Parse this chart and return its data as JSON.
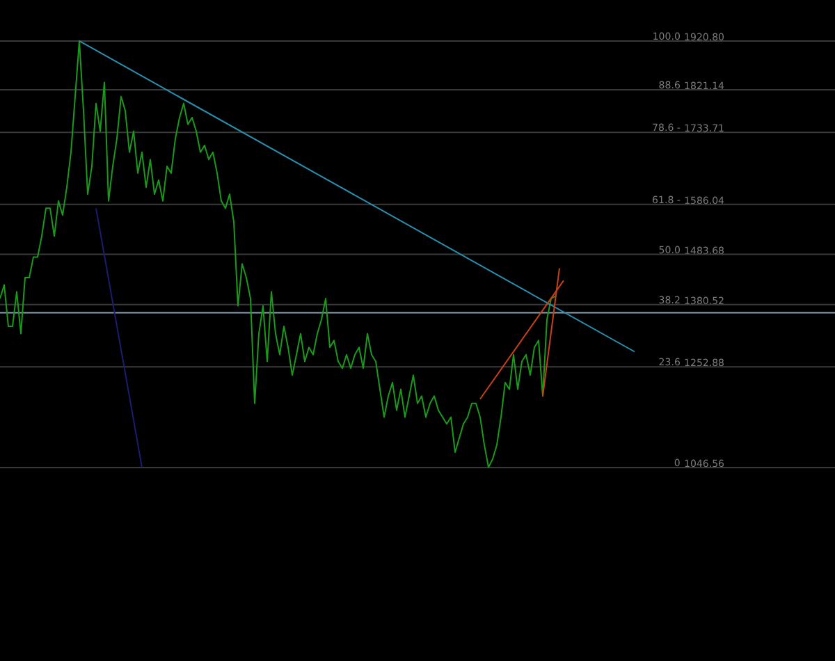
{
  "chart_data": {
    "type": "line",
    "ylim": [
      650,
      2005
    ],
    "tick_labels": "y",
    "grid": "y",
    "categories": [
      null,
      null,
      null,
      null,
      null,
      null,
      null,
      null,
      null,
      null,
      null,
      null,
      null,
      null,
      null,
      null,
      null,
      null,
      null,
      null,
      null,
      null,
      null,
      null,
      null,
      null,
      null,
      null,
      null,
      null,
      null,
      null,
      null,
      null,
      null,
      null,
      null,
      null,
      null,
      null,
      null,
      null,
      null,
      null,
      null,
      null,
      null,
      null,
      null,
      null,
      null,
      null,
      null,
      null,
      null,
      null,
      null,
      null,
      null,
      null,
      null,
      null,
      null,
      null,
      null,
      null,
      null,
      null,
      null,
      null,
      null,
      null,
      null,
      null,
      null,
      null,
      null,
      null,
      null,
      null,
      null,
      null,
      null,
      null,
      null,
      null,
      null,
      null,
      null,
      null,
      null,
      null,
      null,
      null,
      null,
      null,
      null,
      null,
      null,
      null,
      null,
      null,
      null,
      null,
      null,
      null,
      null,
      null,
      null,
      null,
      null,
      null,
      null,
      null,
      null,
      null,
      null,
      null,
      null,
      null,
      null,
      null,
      null,
      null,
      null,
      null,
      null,
      null,
      null,
      null,
      null,
      null,
      null,
      null,
      null,
      null,
      null,
      null,
      null,
      null,
      null,
      null,
      null,
      null,
      null,
      null,
      null,
      null,
      null,
      null,
      null,
      null,
      null,
      null,
      null,
      null,
      null,
      null,
      null,
      null,
      null,
      null,
      null,
      null,
      null,
      null,
      null,
      null,
      null,
      null,
      null,
      null,
      null,
      null,
      null,
      null,
      null,
      null,
      null,
      null,
      null,
      null,
      null,
      null,
      null,
      null,
      null,
      null,
      null,
      null,
      null,
      null,
      null,
      null,
      null,
      null,
      null,
      null,
      null,
      null,
      null
    ],
    "yticks": [
      {
        "value": 1920.8,
        "label": "1920.80"
      },
      {
        "value": 1821.14,
        "label": "1821.14"
      },
      {
        "value": 1733.71,
        "label": "1733.71"
      },
      {
        "value": 1586.04,
        "label": "1586.04"
      },
      {
        "value": 1483.68,
        "label": "1483.68"
      },
      {
        "value": 1380.52,
        "label": "1380.52"
      },
      {
        "value": 1252.88,
        "label": "1252.88"
      },
      {
        "value": 1046.56,
        "label": "1046.56"
      }
    ],
    "annotations": [
      "100.0",
      "88.6",
      "78.6 -",
      "61.8 -",
      "50.0",
      "38.2",
      "23.6",
      "0"
    ],
    "series": [
      {
        "color": "#1a9a1a",
        "values": [
          1393,
          1421,
          1336,
          1336,
          1407,
          1321,
          1436,
          1436,
          1478,
          1478,
          1521,
          1578,
          1578,
          1521,
          1593,
          1564,
          1621,
          1693,
          1807,
          1921,
          1778,
          1607,
          1664,
          1793,
          1736,
          1836,
          1593,
          1664,
          1721,
          1807,
          1778,
          1693,
          1736,
          1650,
          1693,
          1621,
          1678,
          1607,
          1636,
          1593,
          1664,
          1650,
          1721,
          1764,
          1793,
          1750,
          1764,
          1736,
          1693,
          1707,
          1678,
          1693,
          1650,
          1593,
          1578,
          1607,
          1550,
          1378,
          1464,
          1436,
          1393,
          1178,
          1321,
          1378,
          1264,
          1407,
          1321,
          1278,
          1336,
          1293,
          1236,
          1278,
          1321,
          1264,
          1293,
          1278,
          1321,
          1350,
          1393,
          1293,
          1307,
          1264,
          1250,
          1278,
          1250,
          1278,
          1293,
          1250,
          1321,
          1278,
          1264,
          1207,
          1150,
          1193,
          1221,
          1164,
          1207,
          1150,
          1193,
          1236,
          1178,
          1193,
          1150,
          1178,
          1193,
          1164,
          1150,
          1136,
          1150,
          1078,
          1107,
          1136,
          1150,
          1178,
          1178,
          1150,
          1093,
          1047,
          1064,
          1093,
          1150,
          1221,
          1207,
          1278,
          1207,
          1264,
          1278,
          1236,
          1293,
          1307,
          1193,
          1350,
          1393,
          1398,
          null,
          null,
          null,
          null,
          null,
          null,
          null,
          null,
          null,
          null,
          null,
          null,
          null,
          null,
          null,
          null,
          null,
          null,
          null,
          null,
          null,
          null,
          null,
          null,
          null,
          null,
          null,
          null,
          null,
          null,
          null,
          null,
          null,
          null,
          null,
          null,
          null,
          null,
          null,
          null,
          null,
          null,
          null,
          null,
          null,
          null,
          null,
          null,
          null,
          null,
          null,
          null,
          null,
          null,
          null,
          null,
          null,
          null,
          null,
          null,
          null,
          null,
          null,
          null,
          null,
          null,
          null
        ]
      },
      {
        "color": "#2a8fb0",
        "values": [
          null,
          null,
          null,
          null,
          null,
          null,
          null,
          null,
          null,
          null,
          null,
          null,
          null,
          null,
          null,
          null,
          null,
          null,
          null,
          1921,
          null,
          null,
          null,
          null,
          null,
          null,
          null,
          null,
          null,
          null,
          null,
          null,
          null,
          null,
          null,
          null,
          null,
          null,
          null,
          null,
          null,
          null,
          null,
          null,
          null,
          null,
          null,
          null,
          null,
          null,
          null,
          null,
          null,
          null,
          null,
          null,
          null,
          null,
          null,
          null,
          null,
          null,
          null,
          null,
          null,
          null,
          null,
          null,
          null,
          null,
          null,
          null,
          null,
          null,
          null,
          null,
          null,
          null,
          null,
          null,
          null,
          null,
          null,
          null,
          null,
          null,
          null,
          null,
          null,
          null,
          null,
          null,
          null,
          null,
          null,
          null,
          null,
          null,
          null,
          null,
          null,
          null,
          null,
          null,
          null,
          null,
          null,
          null,
          null,
          null,
          null,
          null,
          null,
          null,
          null,
          null,
          null,
          null,
          null,
          null,
          null,
          null,
          null,
          null,
          null,
          null,
          null,
          null,
          null,
          null,
          null,
          null,
          null,
          null,
          null,
          null,
          null,
          null,
          null,
          null,
          null,
          null,
          null,
          null,
          null,
          null,
          null,
          null,
          null,
          null,
          null,
          null,
          1284,
          null,
          null,
          null,
          null,
          null,
          null,
          null,
          null,
          null,
          null,
          null,
          null,
          null,
          null,
          null,
          null,
          null,
          null,
          null,
          null,
          null,
          null,
          null,
          null,
          null,
          null,
          null,
          null,
          null,
          null,
          null,
          null,
          null,
          null,
          null,
          null,
          null,
          null,
          null,
          null,
          null,
          null,
          null,
          null,
          null,
          null,
          null,
          null
        ]
      },
      {
        "color": "#c8401a",
        "values": [
          null,
          null,
          null,
          null,
          null,
          null,
          null,
          null,
          null,
          null,
          null,
          null,
          null,
          null,
          null,
          null,
          null,
          null,
          null,
          null,
          null,
          null,
          null,
          null,
          null,
          null,
          null,
          null,
          null,
          null,
          null,
          null,
          null,
          null,
          null,
          null,
          null,
          null,
          null,
          null,
          null,
          null,
          null,
          null,
          null,
          null,
          null,
          null,
          null,
          null,
          null,
          null,
          null,
          null,
          null,
          null,
          null,
          null,
          null,
          null,
          null,
          null,
          null,
          null,
          null,
          null,
          null,
          null,
          null,
          null,
          null,
          null,
          null,
          null,
          null,
          null,
          null,
          null,
          null,
          null,
          null,
          null,
          null,
          null,
          null,
          null,
          null,
          null,
          null,
          null,
          null,
          null,
          null,
          null,
          null,
          null,
          null,
          null,
          null,
          null,
          null,
          null,
          null,
          null,
          null,
          null,
          null,
          null,
          null,
          null,
          null,
          null,
          null,
          null,
          null,
          1187,
          null,
          null,
          null,
          null,
          null,
          null,
          null,
          null,
          null,
          null,
          null,
          null,
          null,
          null,
          null,
          null,
          null,
          null,
          null,
          1430,
          null,
          null,
          null,
          null,
          null,
          null,
          null,
          null,
          null,
          null,
          null,
          null,
          null,
          null,
          null,
          null,
          null,
          null,
          null,
          null,
          null,
          null,
          null,
          null,
          null,
          null,
          null,
          null,
          null,
          null,
          null,
          null,
          null,
          null,
          null,
          null,
          null,
          null,
          null,
          null,
          null,
          null,
          null,
          null,
          null,
          null,
          null,
          null,
          null,
          null,
          null,
          null,
          null,
          null,
          null,
          null,
          null,
          null,
          null,
          null,
          null,
          null,
          null,
          null,
          null
        ]
      },
      {
        "color": "#c8401a",
        "values": [
          null,
          null,
          null,
          null,
          null,
          null,
          null,
          null,
          null,
          null,
          null,
          null,
          null,
          null,
          null,
          null,
          null,
          null,
          null,
          null,
          null,
          null,
          null,
          null,
          null,
          null,
          null,
          null,
          null,
          null,
          null,
          null,
          null,
          null,
          null,
          null,
          null,
          null,
          null,
          null,
          null,
          null,
          null,
          null,
          null,
          null,
          null,
          null,
          null,
          null,
          null,
          null,
          null,
          null,
          null,
          null,
          null,
          null,
          null,
          null,
          null,
          null,
          null,
          null,
          null,
          null,
          null,
          null,
          null,
          null,
          null,
          null,
          null,
          null,
          null,
          null,
          null,
          null,
          null,
          null,
          null,
          null,
          null,
          null,
          null,
          null,
          null,
          null,
          null,
          null,
          null,
          null,
          null,
          null,
          null,
          null,
          null,
          null,
          null,
          null,
          null,
          null,
          null,
          null,
          null,
          null,
          null,
          null,
          null,
          null,
          null,
          null,
          null,
          null,
          null,
          null,
          null,
          null,
          null,
          null,
          null,
          null,
          null,
          null,
          null,
          null,
          null,
          null,
          null,
          null,
          1193,
          null,
          null,
          null,
          1455,
          null,
          null,
          null,
          null,
          null,
          null,
          null,
          null,
          null,
          null,
          null,
          null,
          null,
          null,
          null,
          null,
          null,
          null,
          null,
          null,
          null,
          null,
          null,
          null,
          null,
          null,
          null,
          null,
          null,
          null,
          null,
          null,
          null,
          null,
          null,
          null,
          null,
          null,
          null,
          null,
          null,
          null,
          null,
          null,
          null,
          null,
          null,
          null,
          null,
          null,
          null,
          null,
          null,
          null,
          null,
          null,
          null,
          null,
          null,
          null,
          null,
          null,
          null,
          null,
          null,
          null
        ]
      },
      {
        "color": "#1c1c70",
        "values": [
          null,
          null,
          null,
          null,
          null,
          null,
          null,
          null,
          null,
          null,
          null,
          null,
          null,
          null,
          null,
          null,
          null,
          null,
          null,
          null,
          null,
          null,
          null,
          1578,
          null,
          null,
          null,
          null,
          null,
          null,
          null,
          null,
          null,
          null,
          1047,
          null,
          null,
          null,
          null,
          null,
          null,
          null,
          null,
          null,
          null,
          null,
          null,
          null,
          null,
          null,
          null,
          null,
          null,
          null,
          null,
          null,
          null,
          null,
          null,
          null,
          null,
          null,
          null,
          null,
          null,
          null,
          null,
          null,
          null,
          null,
          null,
          null,
          null,
          null,
          null,
          null,
          null,
          null,
          null,
          null,
          null,
          null,
          null,
          null,
          null,
          null,
          null,
          null,
          null,
          null,
          null,
          null,
          null,
          null,
          null,
          null,
          null,
          null,
          null,
          null,
          null,
          null,
          null,
          null,
          null,
          null,
          null,
          null,
          null,
          null,
          null,
          null,
          null,
          null,
          null,
          null,
          null,
          null,
          null,
          null,
          null,
          null,
          null,
          null,
          null,
          null,
          null,
          null,
          null,
          null,
          null,
          null,
          null,
          null,
          null,
          null,
          null,
          null,
          null,
          null,
          null,
          null,
          null,
          null,
          null,
          null,
          null,
          null,
          null,
          null,
          null,
          null,
          null,
          null,
          null,
          null,
          null,
          null,
          null,
          null,
          null,
          null,
          null,
          null,
          null,
          null,
          null,
          null,
          null,
          null,
          null,
          null,
          null,
          null,
          null,
          null,
          null,
          null,
          null,
          null,
          null,
          null,
          null,
          null,
          null,
          null,
          null,
          null,
          null,
          null,
          null,
          null,
          null,
          null,
          null,
          null,
          null,
          null,
          null,
          null,
          null
        ]
      }
    ],
    "ref_lines": [
      {
        "axis": "y",
        "value": 1364,
        "color": "#8aa4b4"
      }
    ]
  }
}
